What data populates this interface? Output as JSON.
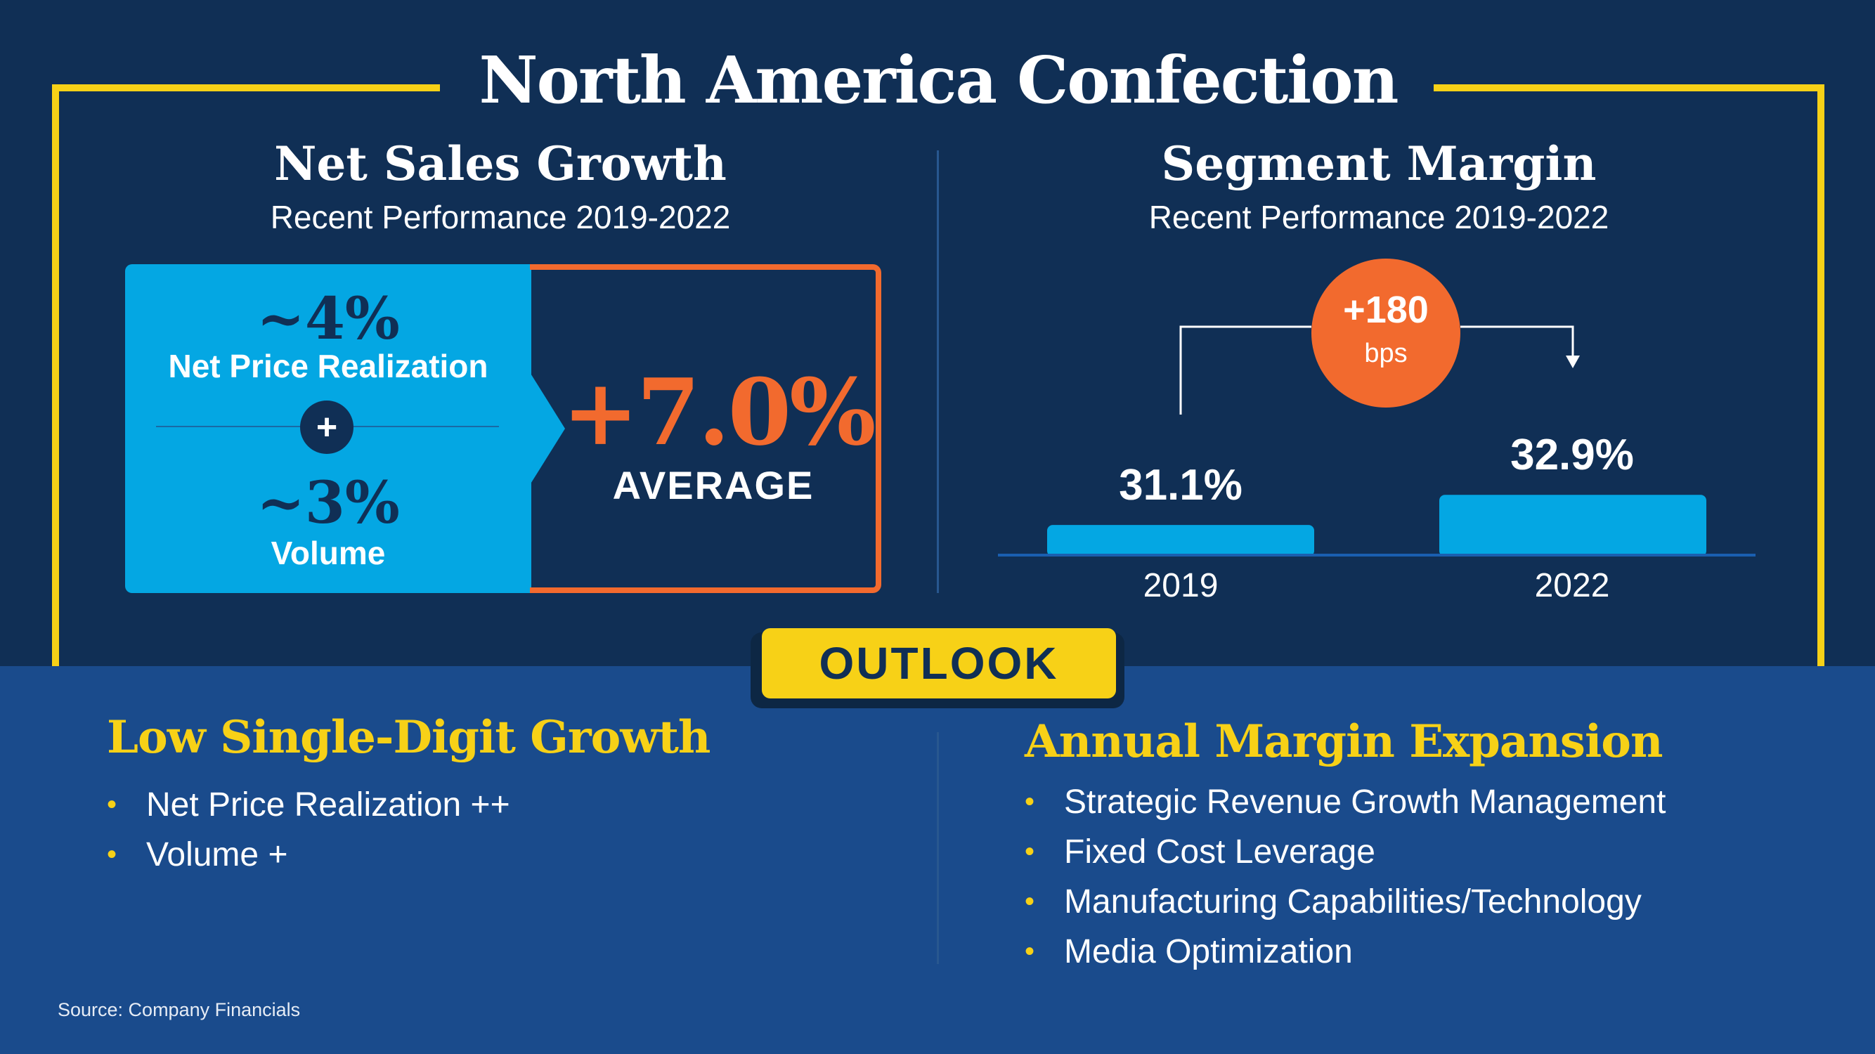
{
  "title": "North America Confection",
  "net_sales": {
    "title": "Net Sales Growth",
    "subtitle": "Recent Performance 2019-2022",
    "price_value": "~4%",
    "price_label": "Net Price Realization",
    "plus_symbol": "+",
    "volume_value": "~3%",
    "volume_label": "Volume",
    "average_value": "+7.0%",
    "average_label": "AVERAGE"
  },
  "segment_margin": {
    "title": "Segment Margin",
    "subtitle": "Recent Performance 2019-2022",
    "badge_value": "+180",
    "badge_unit": "bps"
  },
  "chart_data": {
    "type": "bar",
    "title": "Segment Margin",
    "categories": [
      "2019",
      "2022"
    ],
    "values": [
      31.1,
      32.9
    ],
    "value_labels": [
      "31.1%",
      "32.9%"
    ],
    "unit": "%",
    "ylim": [
      29.3,
      33.5
    ],
    "annotation": "+180 bps",
    "grid": false
  },
  "outlook": {
    "label": "OUTLOOK",
    "left": {
      "heading": "Low Single-Digit Growth",
      "bullets": [
        "Net Price Realization ++",
        "Volume +"
      ]
    },
    "right": {
      "heading": "Annual Margin Expansion",
      "bullets": [
        "Strategic Revenue Growth Management",
        "Fixed Cost Leverage",
        "Manufacturing Capabilities/Technology",
        "Media Optimization"
      ]
    },
    "bullet_symbol": "•"
  },
  "source": "Source: Company Financials",
  "colors": {
    "navy": "#102f55",
    "royal": "#1a4b8c",
    "cyan": "#04a7e3",
    "orange": "#f26a2e",
    "yellow": "#f7d117"
  }
}
